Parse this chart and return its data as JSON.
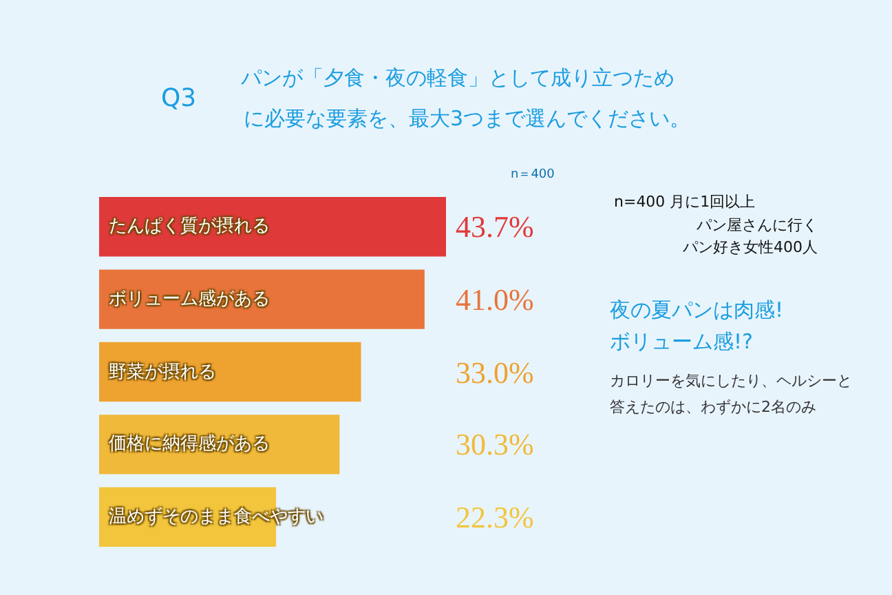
{
  "chart_data": {
    "type": "bar",
    "orientation": "horizontal",
    "title": "パンが「夕食・夜の軽食」として成り立つため",
    "subtitle": "に必要な要素を、最大3つまで選んでください。",
    "categories": [
      "たんぱく質が摂れる",
      "ボリューム感がある",
      "野菜が摂れる",
      "価格に納得感がある",
      "温めずそのまま食べやすい"
    ],
    "values": [
      43.7,
      41.0,
      33.0,
      30.3,
      22.3
    ],
    "value_labels": [
      "43.7%",
      "41.0%",
      "33.0%",
      "30.3%",
      "22.3%"
    ],
    "colors": [
      "#e0393a",
      "#e8743b",
      "#eea230",
      "#f0b93a",
      "#f2c53d"
    ],
    "annotations": [
      "Q3",
      "n＝400",
      "n=400 月に1回以上",
      "パン屋さんに行く",
      "パン好き女性400人",
      "夜の夏パンは肉感!",
      "ボリューム感!?",
      "カロリーを気にしたり、ヘルシーと",
      "答えたのは、わずかに2名のみ"
    ],
    "tick_labels": false,
    "grid": false,
    "legend": false
  }
}
